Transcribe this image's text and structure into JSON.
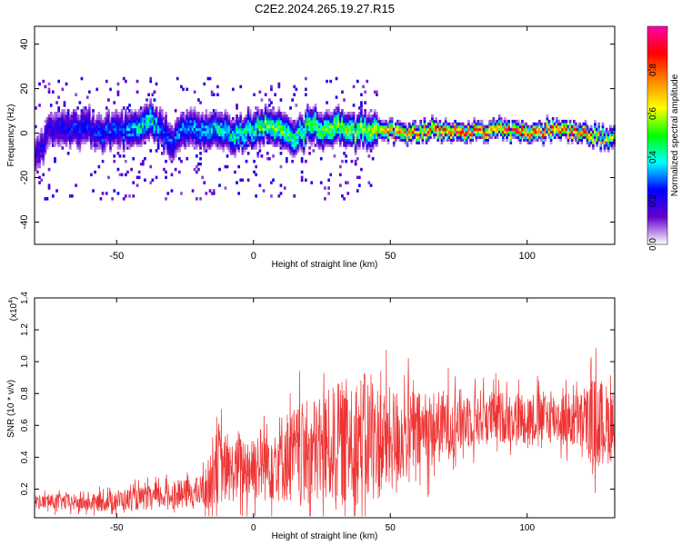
{
  "title": "C2E2.2024.265.19.27.R15",
  "chart_data": [
    {
      "type": "heatmap",
      "xlabel": "Height of straight line (km)",
      "ylabel": "Frequency (Hz)",
      "xlim": [
        -80,
        132
      ],
      "ylim": [
        -50,
        48
      ],
      "xticks": [
        -50,
        0,
        50,
        100
      ],
      "yticks": [
        -40,
        -20,
        0,
        20,
        40
      ],
      "grid": false,
      "colorbar": {
        "label": "Normalized spectral amplitude",
        "range": [
          0,
          1
        ],
        "ticks": [
          "0.0",
          "0.2",
          "0.4",
          "0.6",
          "0.8"
        ],
        "colors": [
          "#ffffff",
          "#6600cc",
          "#0000ff",
          "#00ffff",
          "#00ff00",
          "#ffff00",
          "#ff8800",
          "#ff0000",
          "#ff00aa"
        ]
      },
      "ridge": {
        "x": [
          -80,
          -75,
          -70,
          -65,
          -60,
          -55,
          -50,
          -45,
          -40,
          -38,
          -35,
          -30,
          -25,
          -20,
          -15,
          -10,
          -5,
          0,
          5,
          10,
          15,
          20,
          25,
          30,
          35,
          40,
          45,
          50,
          60,
          70,
          80,
          90,
          100,
          110,
          120,
          125,
          130
        ],
        "freq": [
          -12,
          0,
          2,
          3,
          1,
          0,
          2,
          1,
          4,
          6,
          2,
          -4,
          2,
          0,
          1,
          0,
          -1,
          2,
          3,
          1,
          -3,
          2,
          1,
          3,
          0,
          2,
          1,
          0,
          0,
          1,
          0,
          1,
          0,
          1,
          0,
          -2,
          -3
        ],
        "amplitude": [
          0.2,
          0.22,
          0.25,
          0.28,
          0.25,
          0.3,
          0.3,
          0.35,
          0.45,
          0.5,
          0.35,
          0.3,
          0.35,
          0.35,
          0.4,
          0.45,
          0.45,
          0.5,
          0.55,
          0.55,
          0.5,
          0.55,
          0.55,
          0.6,
          0.6,
          0.6,
          0.7,
          0.75,
          0.85,
          0.9,
          0.95,
          0.9,
          0.95,
          0.95,
          0.9,
          0.7,
          0.6
        ]
      }
    },
    {
      "type": "line",
      "xlabel": "Height of straight line (km)",
      "ylabel": "SNR (10 * v/v)",
      "yscale_label": "(x10",
      "yscale_exp": "4",
      "xlim": [
        -80,
        132
      ],
      "ylim": [
        0.02,
        1.4
      ],
      "xticks": [
        -50,
        0,
        50,
        100
      ],
      "yticks": [
        "0.2",
        "0.4",
        "0.6",
        "0.8",
        "1.0",
        "1.2",
        "1.4"
      ],
      "color": "#ee3333",
      "envelope": {
        "x": [
          -80,
          -70,
          -60,
          -50,
          -40,
          -30,
          -20,
          -16,
          -14,
          -10,
          0,
          10,
          20,
          30,
          35,
          40,
          45,
          50,
          55,
          60,
          70,
          80,
          90,
          100,
          110,
          120,
          125,
          132
        ],
        "mean": [
          0.12,
          0.12,
          0.11,
          0.13,
          0.14,
          0.16,
          0.18,
          0.22,
          0.4,
          0.3,
          0.35,
          0.4,
          0.42,
          0.48,
          0.5,
          0.52,
          0.5,
          0.5,
          0.55,
          0.55,
          0.6,
          0.65,
          0.65,
          0.65,
          0.65,
          0.62,
          0.62,
          0.6
        ],
        "spread": [
          0.06,
          0.07,
          0.07,
          0.09,
          0.1,
          0.11,
          0.13,
          0.2,
          0.4,
          0.25,
          0.3,
          0.38,
          0.45,
          0.5,
          0.55,
          0.55,
          0.5,
          0.45,
          0.4,
          0.35,
          0.3,
          0.25,
          0.22,
          0.22,
          0.22,
          0.25,
          0.4,
          0.3
        ]
      }
    }
  ]
}
